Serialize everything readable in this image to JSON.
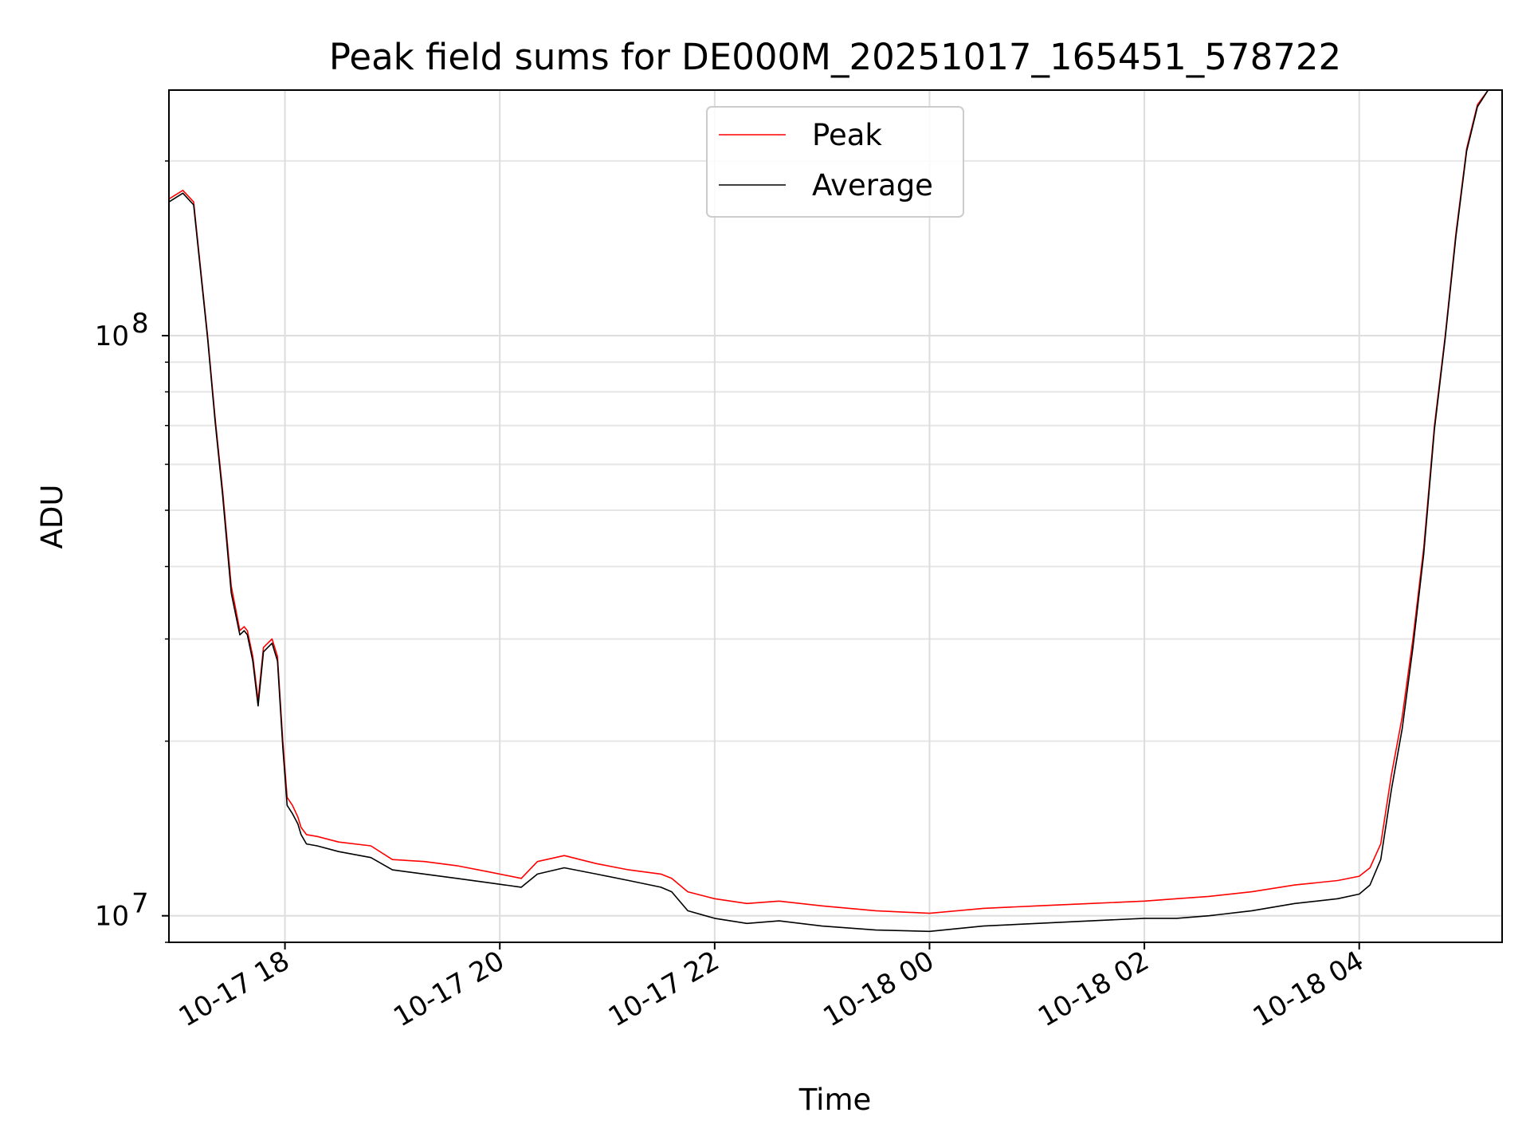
{
  "chart_data": {
    "type": "line",
    "title": "Peak field sums for DE000M_20251017_165451_578722",
    "xlabel": "Time",
    "ylabel": "ADU",
    "yscale": "log",
    "ylim": [
      9000000,
      265000000
    ],
    "xlim_hours": [
      16.92,
      29.33
    ],
    "grid": true,
    "legend_position": "upper-center",
    "x_ticks": [
      {
        "hour": 18,
        "label": "10-17 18"
      },
      {
        "hour": 20,
        "label": "10-17 20"
      },
      {
        "hour": 22,
        "label": "10-17 22"
      },
      {
        "hour": 24,
        "label": "10-18 00"
      },
      {
        "hour": 26,
        "label": "10-18 02"
      },
      {
        "hour": 28,
        "label": "10-18 04"
      }
    ],
    "y_ticks": [
      {
        "value": 10000000,
        "base": "10",
        "exp": "7"
      },
      {
        "value": 100000000,
        "base": "10",
        "exp": "8"
      }
    ],
    "x_hours": [
      16.92,
      17.05,
      17.15,
      17.28,
      17.35,
      17.42,
      17.5,
      17.58,
      17.62,
      17.65,
      17.7,
      17.75,
      17.8,
      17.84,
      17.88,
      17.93,
      17.98,
      18.02,
      18.07,
      18.12,
      18.15,
      18.2,
      18.3,
      18.5,
      18.8,
      19.0,
      19.3,
      19.6,
      19.9,
      20.2,
      20.35,
      20.6,
      20.9,
      21.2,
      21.5,
      21.6,
      21.75,
      22.0,
      22.3,
      22.6,
      23.0,
      23.5,
      24.0,
      24.5,
      25.0,
      25.5,
      26.0,
      26.3,
      26.6,
      27.0,
      27.4,
      27.8,
      28.0,
      28.1,
      28.2,
      28.3,
      28.4,
      28.5,
      28.6,
      28.7,
      28.8,
      28.9,
      29.0,
      29.1,
      29.2,
      29.33
    ],
    "series": [
      {
        "name": "Peak",
        "color": "#ff0000",
        "values": [
          172000000,
          178000000,
          170000000,
          100000000,
          72000000,
          54000000,
          37000000,
          31000000,
          31500000,
          31000000,
          28000000,
          23500000,
          29000000,
          29500000,
          30000000,
          28000000,
          20000000,
          16000000,
          15500000,
          14800000,
          14200000,
          13800000,
          13700000,
          13400000,
          13200000,
          12500000,
          12400000,
          12200000,
          11900000,
          11600000,
          12400000,
          12700000,
          12300000,
          12000000,
          11800000,
          11600000,
          11000000,
          10700000,
          10500000,
          10600000,
          10400000,
          10200000,
          10100000,
          10300000,
          10400000,
          10500000,
          10600000,
          10700000,
          10800000,
          11000000,
          11300000,
          11500000,
          11700000,
          12100000,
          13300000,
          17500000,
          22000000,
          30000000,
          43000000,
          70000000,
          100000000,
          150000000,
          210000000,
          250000000,
          265000000,
          265000000
        ]
      },
      {
        "name": "Average",
        "color": "#000000",
        "values": [
          170000000,
          176000000,
          168000000,
          99000000,
          71000000,
          53000000,
          36000000,
          30500000,
          31000000,
          30500000,
          27500000,
          23000000,
          28500000,
          29000000,
          29500000,
          27500000,
          19500000,
          15500000,
          15000000,
          14400000,
          13800000,
          13300000,
          13200000,
          12900000,
          12600000,
          12000000,
          11800000,
          11600000,
          11400000,
          11200000,
          11800000,
          12100000,
          11800000,
          11500000,
          11200000,
          11000000,
          10200000,
          9900000,
          9700000,
          9800000,
          9600000,
          9450000,
          9400000,
          9600000,
          9700000,
          9800000,
          9900000,
          9900000,
          10000000,
          10200000,
          10500000,
          10700000,
          10900000,
          11300000,
          12500000,
          16500000,
          21000000,
          29000000,
          42000000,
          69000000,
          99000000,
          148000000,
          208000000,
          248000000,
          265000000,
          265000000
        ]
      }
    ]
  }
}
